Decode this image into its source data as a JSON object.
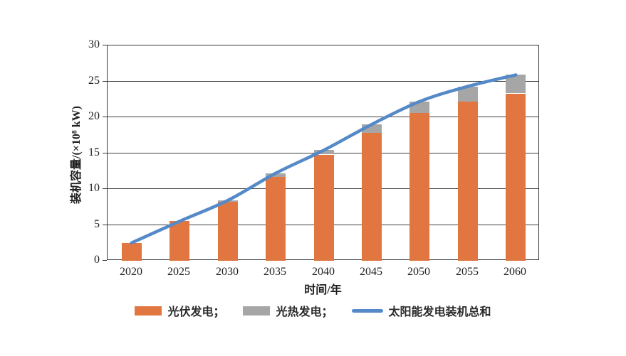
{
  "chart_data": {
    "type": "bar",
    "subtype": "stacked-bars-with-line-overlay",
    "title": "",
    "xlabel": "时间/年",
    "ylabel": "装机容量/(×10⁸ kW)",
    "categories": [
      "2020",
      "2025",
      "2030",
      "2035",
      "2040",
      "2045",
      "2050",
      "2055",
      "2060"
    ],
    "series": [
      {
        "name": "光伏发电",
        "type": "bar",
        "color": "#E27641",
        "values": [
          2.5,
          5.5,
          8.2,
          11.7,
          14.8,
          17.8,
          20.6,
          22.2,
          23.3
        ]
      },
      {
        "name": "光热发电",
        "type": "bar",
        "color": "#A6A6A6",
        "values": [
          0,
          0,
          0.2,
          0.5,
          0.6,
          1.2,
          1.6,
          2.1,
          2.6
        ]
      },
      {
        "name": "太阳能发电装机总和",
        "type": "line",
        "color": "#5589C7",
        "values": [
          2.5,
          5.5,
          8.4,
          12.2,
          15.4,
          19.0,
          22.2,
          24.3,
          25.9
        ]
      }
    ],
    "ylim": [
      0,
      30
    ],
    "yticks": [
      0,
      5,
      10,
      15,
      20,
      25,
      30
    ],
    "grid": "horizontal",
    "legend_position": "bottom",
    "legend": [
      {
        "label": "光伏发电；",
        "swatch": "rect",
        "color": "#E27641"
      },
      {
        "label": "光热发电；",
        "swatch": "rect",
        "color": "#A6A6A6"
      },
      {
        "label": "太阳能发电装机总和",
        "swatch": "line",
        "color": "#5589C7"
      }
    ],
    "colors": {
      "bar_pv": "#E27641",
      "bar_csp": "#A6A6A6",
      "line_total": "#5589C7",
      "axis": "#3a3a3a",
      "text": "#1f1f1f"
    }
  }
}
